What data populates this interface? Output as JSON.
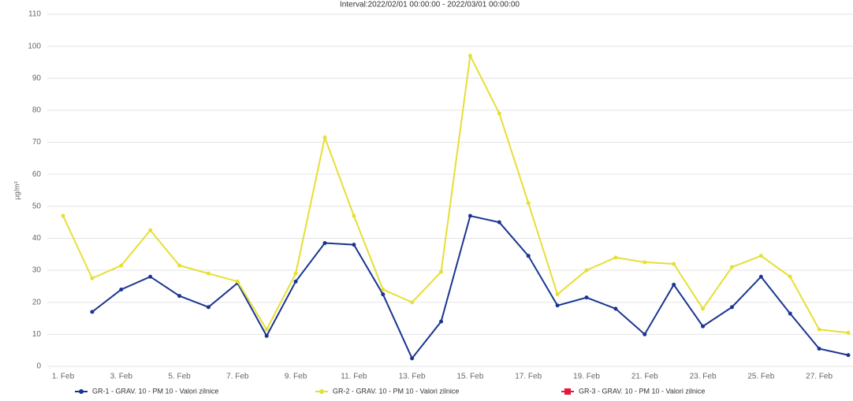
{
  "chart_data": {
    "type": "line",
    "title": "Interval:2022/02/01 00:00:00 - 2022/03/01 00:00:00",
    "y_label": "µg/m³",
    "categories": [
      "1. Feb",
      null,
      "3. Feb",
      null,
      "5. Feb",
      null,
      "7. Feb",
      null,
      "9. Feb",
      null,
      "11. Feb",
      null,
      "13. Feb",
      null,
      "15. Feb",
      null,
      "17. Feb",
      null,
      "19. Feb",
      null,
      "21. Feb",
      null,
      "23. Feb",
      null,
      "25. Feb",
      null,
      "27. Feb",
      null
    ],
    "series": [
      {
        "name": "GR-1 - GRAV. 10 - PM 10 - Valori zilnice",
        "color": "#1a3591",
        "values": [
          null,
          17,
          24,
          28,
          22,
          18.5,
          26,
          9.5,
          26.5,
          38.5,
          38,
          22.5,
          2.5,
          14,
          47,
          45,
          34.5,
          19,
          21.5,
          18,
          10,
          25.5,
          12.5,
          18.5,
          28,
          16.5,
          5.5,
          3.5
        ]
      },
      {
        "name": "GR-2 - GRAV. 10 - PM 10 - Valori zilnice",
        "color": "#e6df35",
        "values": [
          47,
          27.5,
          31.5,
          42.5,
          31.5,
          29,
          26.5,
          11.5,
          29,
          71.5,
          47,
          24,
          20,
          29.5,
          97,
          79,
          51,
          22.5,
          30,
          34,
          32.5,
          32,
          18,
          31,
          34.5,
          28,
          11.5,
          10.5
        ]
      },
      {
        "name": "GR-3 - GRAV. 10 - PM 10 - Valori zilnice",
        "color": "#e3173f",
        "values": [
          null,
          null,
          null,
          null,
          null,
          null,
          null,
          null,
          null,
          null,
          null,
          null,
          null,
          null,
          null,
          null,
          null,
          null,
          null,
          null,
          null,
          null,
          null,
          null,
          null,
          null,
          null,
          null
        ]
      }
    ],
    "ylim": [
      0,
      110
    ],
    "yticks": [
      0,
      10,
      20,
      30,
      40,
      50,
      60,
      70,
      80,
      90,
      100,
      110
    ],
    "grid": true
  }
}
